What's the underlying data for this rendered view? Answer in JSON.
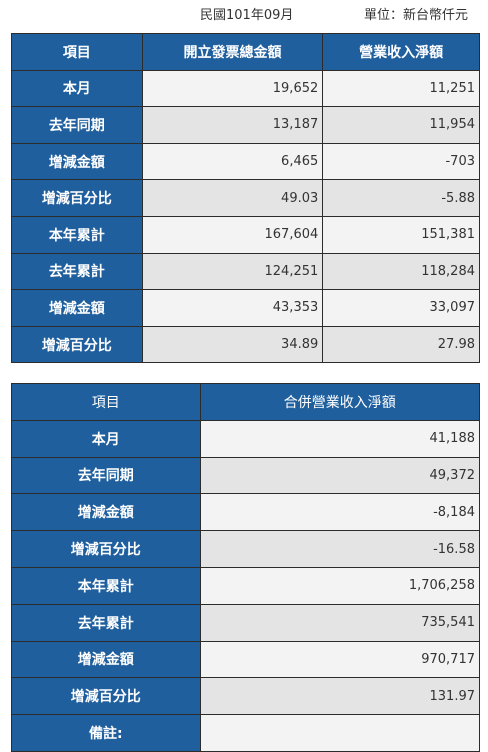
{
  "meta": {
    "date": "民國101年09月",
    "unit": "單位：新台幣仟元"
  },
  "table1": {
    "headers": [
      "項目",
      "開立發票總金額",
      "營業收入淨額"
    ],
    "rows": [
      {
        "label": "本月",
        "a": "19,652",
        "b": "11,251"
      },
      {
        "label": "去年同期",
        "a": "13,187",
        "b": "11,954"
      },
      {
        "label": "增減金額",
        "a": "6,465",
        "b": "-703"
      },
      {
        "label": "增減百分比",
        "a": "49.03",
        "b": "-5.88"
      },
      {
        "label": "本年累計",
        "a": "167,604",
        "b": "151,381"
      },
      {
        "label": "去年累計",
        "a": "124,251",
        "b": "118,284"
      },
      {
        "label": "增減金額",
        "a": "43,353",
        "b": "33,097"
      },
      {
        "label": "增減百分比",
        "a": "34.89",
        "b": "27.98"
      }
    ]
  },
  "table2": {
    "headers": [
      "項目",
      "合併營業收入淨額"
    ],
    "rows": [
      {
        "label": "本月",
        "v": "41,188"
      },
      {
        "label": "去年同期",
        "v": "49,372"
      },
      {
        "label": "增減金額",
        "v": "-8,184"
      },
      {
        "label": "增減百分比",
        "v": "-16.58"
      },
      {
        "label": "本年累計",
        "v": "1,706,258"
      },
      {
        "label": "去年累計",
        "v": "735,541"
      },
      {
        "label": "增減金額",
        "v": "970,717"
      },
      {
        "label": "增減百分比",
        "v": "131.97"
      }
    ],
    "note_label": "備註:",
    "note_value": ""
  },
  "colors": {
    "header_bg": "#1f5f9e",
    "row_odd": "#f3f3f3",
    "row_even": "#e4e4e4"
  }
}
